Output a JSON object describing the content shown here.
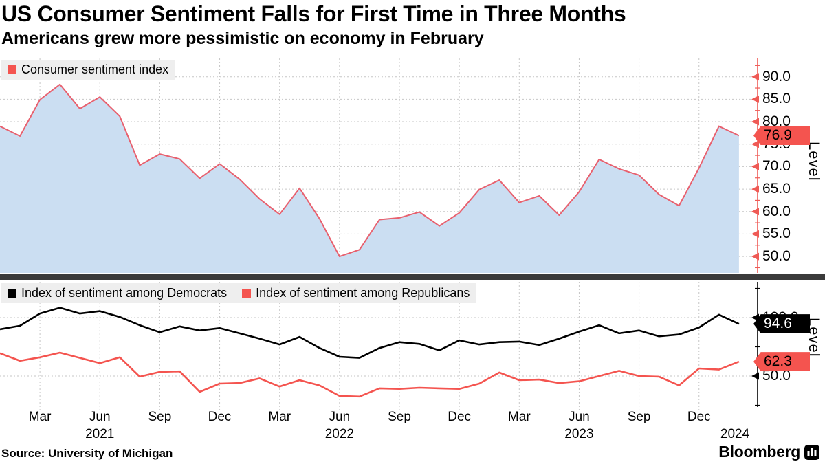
{
  "header": {
    "title": "US Consumer Sentiment Falls for First Time in Three Months",
    "subtitle": "Americans grew more pessimistic on economy in February"
  },
  "footer": {
    "source": "Source: University of Michigan",
    "brand": "Bloomberg"
  },
  "colors": {
    "red": "#f4544f",
    "line_red": "#e8606e",
    "axis_red": "#ef5a55",
    "black": "#000000",
    "fill_blue": "#cbdef2",
    "grid": "#c6c6c6",
    "legend_bg": "#eeeeee",
    "separator": "#3b3b3b"
  },
  "x_axis": {
    "months": [
      {
        "label": "Mar",
        "index": 2
      },
      {
        "label": "Jun",
        "index": 5
      },
      {
        "label": "Sep",
        "index": 8
      },
      {
        "label": "Dec",
        "index": 11
      },
      {
        "label": "Mar",
        "index": 14
      },
      {
        "label": "Jun",
        "index": 17
      },
      {
        "label": "Sep",
        "index": 20
      },
      {
        "label": "Dec",
        "index": 23
      },
      {
        "label": "Mar",
        "index": 26
      },
      {
        "label": "Jun",
        "index": 29
      },
      {
        "label": "Sep",
        "index": 32
      },
      {
        "label": "Dec",
        "index": 35
      }
    ],
    "years": [
      {
        "label": "2021",
        "index": 5
      },
      {
        "label": "2022",
        "index": 17
      },
      {
        "label": "2023",
        "index": 29
      },
      {
        "label": "2024",
        "index": 36.8
      }
    ]
  },
  "chart_data": [
    {
      "type": "area",
      "panel": "top",
      "ylabel": "Level",
      "yticks": [
        50,
        55,
        60,
        65,
        70,
        75,
        80,
        85,
        90
      ],
      "ylim": [
        46.5,
        94
      ],
      "x_start": "2021-01",
      "x_end": "2024-02",
      "x_freq": "monthly",
      "grid": true,
      "series": [
        {
          "name": "Consumer sentiment index",
          "color_key": "red",
          "callout": "76.9",
          "values": [
            79.0,
            76.8,
            84.9,
            88.3,
            82.9,
            85.5,
            81.2,
            70.3,
            72.8,
            71.7,
            67.4,
            70.6,
            67.2,
            62.8,
            59.4,
            65.2,
            58.4,
            50.0,
            51.5,
            58.2,
            58.6,
            59.9,
            56.8,
            59.7,
            64.9,
            67.0,
            62.0,
            63.5,
            59.2,
            64.4,
            71.6,
            69.5,
            68.1,
            63.8,
            61.3,
            69.7,
            79.0,
            76.9
          ]
        }
      ]
    },
    {
      "type": "line",
      "panel": "bottom",
      "ylabel": "Level",
      "yticks": [
        50,
        100
      ],
      "ylim": [
        23,
        131
      ],
      "x_start": "2021-01",
      "x_end": "2024-02",
      "x_freq": "monthly",
      "grid": true,
      "series": [
        {
          "name": "Index of sentiment among Democrats",
          "color_key": "black",
          "callout": "94.6",
          "values": [
            90.0,
            93.0,
            103.5,
            108.5,
            103.5,
            105.5,
            100.5,
            93.5,
            87.5,
            92.5,
            89.0,
            91.0,
            86.5,
            82.0,
            77.0,
            83.5,
            74.0,
            66.5,
            65.5,
            74.0,
            79.0,
            77.5,
            72.0,
            80.5,
            77.0,
            79.0,
            79.5,
            76.5,
            82.0,
            88.0,
            93.5,
            86.5,
            89.0,
            84.0,
            85.5,
            91.5,
            102.5,
            94.6
          ]
        },
        {
          "name": "Index of sentiment among Republicans",
          "color_key": "red",
          "callout": "62.3",
          "values": [
            69.5,
            63.0,
            66.0,
            70.0,
            65.5,
            61.0,
            66.0,
            49.5,
            53.5,
            54.0,
            36.5,
            43.5,
            44.0,
            48.0,
            41.0,
            46.5,
            42.0,
            33.0,
            32.5,
            39.5,
            39.0,
            40.0,
            39.5,
            39.0,
            43.5,
            53.0,
            46.5,
            47.0,
            44.0,
            45.5,
            50.0,
            54.5,
            50.0,
            49.5,
            42.0,
            56.5,
            55.5,
            62.3
          ]
        }
      ]
    }
  ]
}
